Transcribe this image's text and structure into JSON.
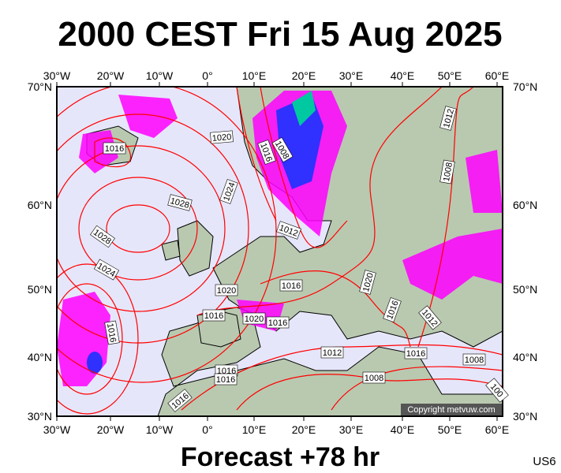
{
  "header": {
    "title": "2000 CEST Fri 15 Aug 2025"
  },
  "map": {
    "lon_labels": [
      "30°W",
      "20°W",
      "10°W",
      "0°",
      "10°E",
      "20°E",
      "30°E",
      "40°E",
      "50°E",
      "60°E"
    ],
    "lat_labels": [
      "70°N",
      "60°N",
      "50°N",
      "40°N",
      "30°N"
    ],
    "isobar_labels": [
      "1016",
      "1020",
      "1028",
      "1024",
      "1008",
      "1016",
      "1028",
      "1024",
      "1016",
      "1012",
      "1012",
      "1008",
      "1016",
      "1020",
      "1020",
      "1016",
      "1012",
      "1016",
      "1020",
      "1016",
      "1012",
      "1016",
      "1008",
      "1008",
      "1016",
      "1016",
      "1016",
      "100"
    ],
    "copyright": "Copyright metvuw.com"
  },
  "footer": {
    "forecast": "Forecast +78 hr",
    "code": "US6"
  }
}
